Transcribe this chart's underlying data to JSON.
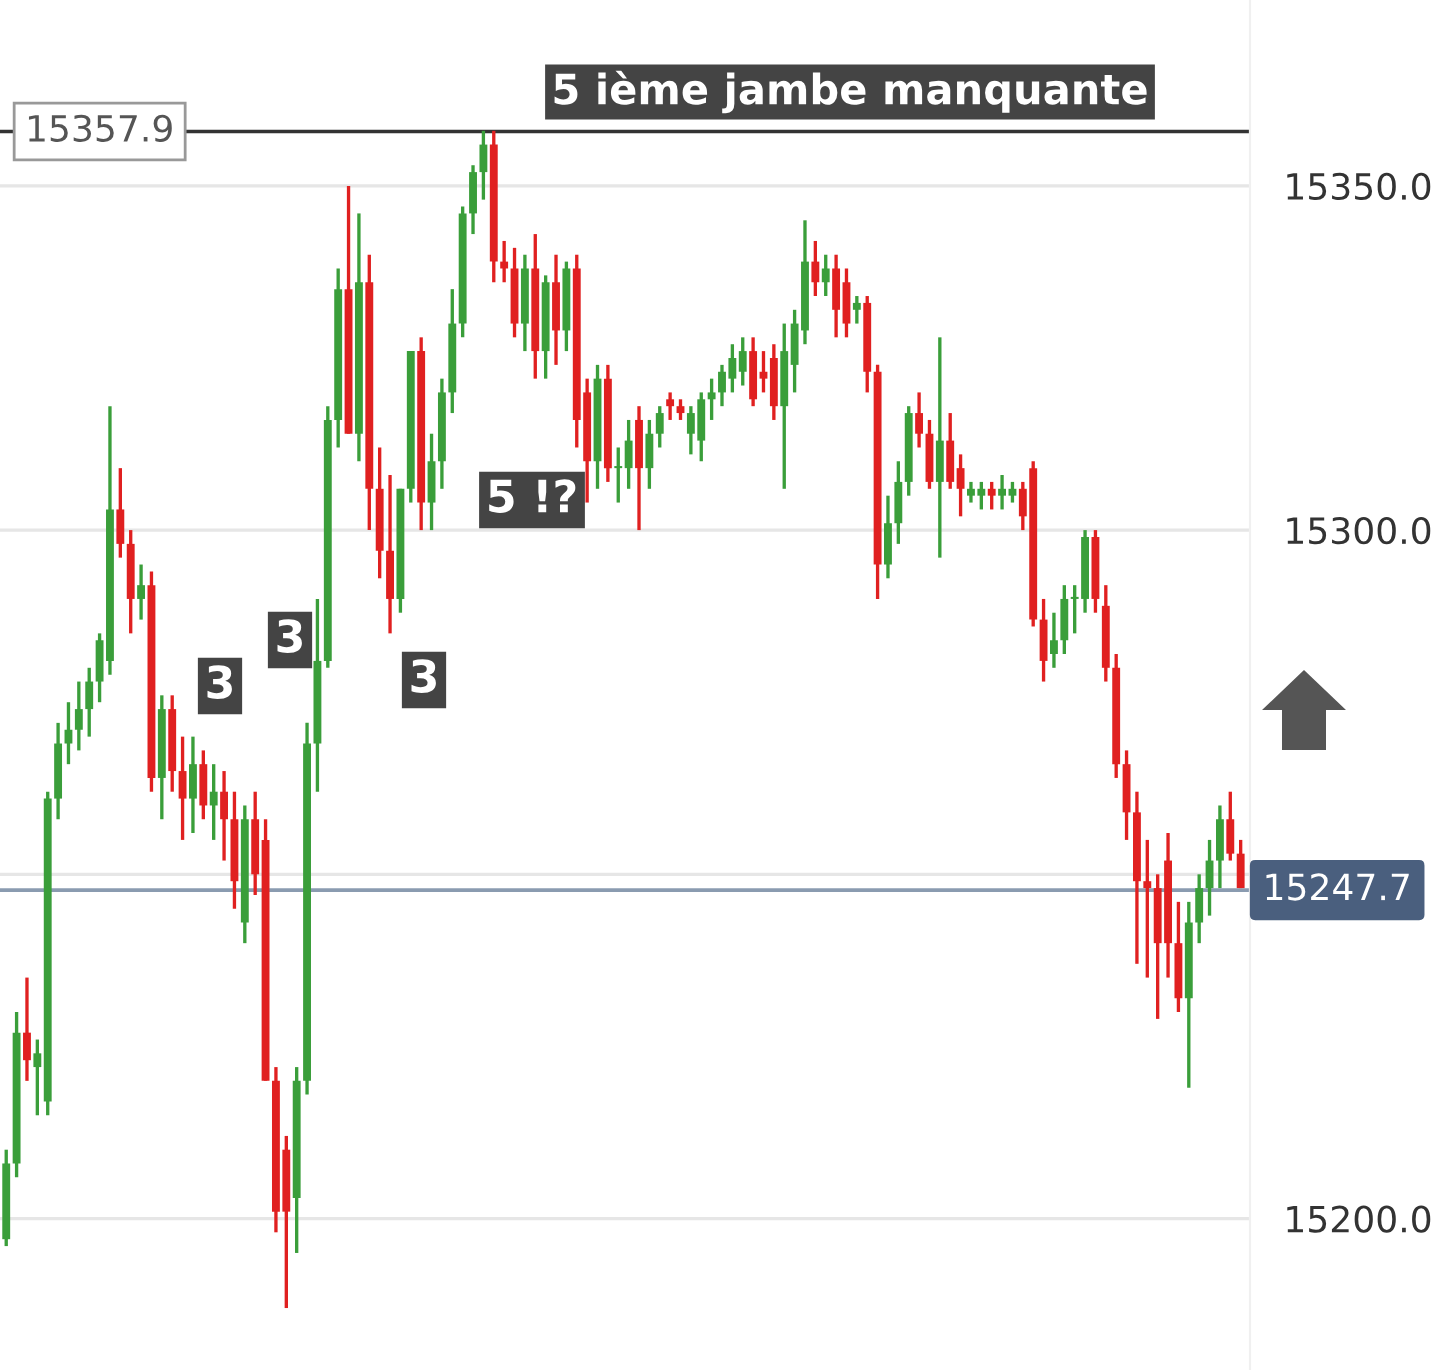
{
  "chart_data": {
    "type": "candlestick",
    "categories": [
      null,
      null,
      null,
      null,
      null,
      null,
      null,
      null,
      null,
      null,
      null,
      null,
      null,
      null,
      null,
      null,
      null,
      null,
      null,
      null,
      null,
      null,
      null,
      null,
      null,
      null,
      null,
      null,
      null,
      null,
      null,
      null,
      null,
      null,
      null,
      null,
      null,
      null,
      null,
      null,
      null,
      null,
      null,
      null,
      null,
      null,
      null,
      null,
      null,
      null,
      null,
      null,
      null,
      null,
      null,
      null,
      null,
      null,
      null,
      null,
      null,
      null,
      null,
      null,
      null,
      null,
      null,
      null,
      null,
      null,
      null,
      null,
      null,
      null,
      null,
      null,
      null,
      null,
      null,
      null,
      null,
      null,
      null,
      null,
      null,
      null,
      null,
      null,
      null,
      null,
      null,
      null,
      null,
      null,
      null,
      null,
      null,
      null,
      null,
      null,
      null,
      null,
      null,
      null,
      null,
      null,
      null,
      null,
      null,
      null,
      null,
      null,
      null,
      null,
      null,
      null,
      null,
      null,
      null,
      null
    ],
    "ohlc": [
      [
        15197,
        15210,
        15196,
        15208
      ],
      [
        15208,
        15230,
        15206,
        15227
      ],
      [
        15227,
        15235,
        15220,
        15223
      ],
      [
        15222,
        15226,
        15215,
        15224
      ],
      [
        15217,
        15262,
        15215,
        15261
      ],
      [
        15261,
        15272,
        15258,
        15269
      ],
      [
        15269,
        15275,
        15266,
        15271
      ],
      [
        15271,
        15278,
        15268,
        15274
      ],
      [
        15274,
        15280,
        15270,
        15278
      ],
      [
        15278,
        15285,
        15275,
        15284
      ],
      [
        15281,
        15318,
        15279,
        15303
      ],
      [
        15303,
        15309,
        15296,
        15298
      ],
      [
        15298,
        15300,
        15285,
        15290
      ],
      [
        15290,
        15295,
        15287,
        15292
      ],
      [
        15292,
        15294,
        15262,
        15264
      ],
      [
        15264,
        15276,
        15258,
        15274
      ],
      [
        15274,
        15276,
        15262,
        15265
      ],
      [
        15265,
        15270,
        15255,
        15261
      ],
      [
        15261,
        15270,
        15256,
        15266
      ],
      [
        15266,
        15268,
        15258,
        15260
      ],
      [
        15260,
        15266,
        15255,
        15262
      ],
      [
        15262,
        15265,
        15252,
        15258
      ],
      [
        15258,
        15262,
        15245,
        15249
      ],
      [
        15243,
        15260,
        15240,
        15258
      ],
      [
        15258,
        15262,
        15247,
        15250
      ],
      [
        15255,
        15258,
        15220,
        15220
      ],
      [
        15220,
        15222,
        15198,
        15201
      ],
      [
        15210,
        15212,
        15187,
        15201
      ],
      [
        15203,
        15222,
        15195,
        15220
      ],
      [
        15220,
        15272,
        15218,
        15269
      ],
      [
        15269,
        15290,
        15262,
        15281
      ],
      [
        15281,
        15318,
        15280,
        15316
      ],
      [
        15316,
        15338,
        15312,
        15335
      ],
      [
        15335,
        15350,
        15314,
        15314
      ],
      [
        15314,
        15346,
        15310,
        15336
      ],
      [
        15336,
        15340,
        15300,
        15306
      ],
      [
        15306,
        15312,
        15293,
        15297
      ],
      [
        15297,
        15308,
        15285,
        15290
      ],
      [
        15290,
        15306,
        15288,
        15306
      ],
      [
        15306,
        15326,
        15304,
        15326
      ],
      [
        15326,
        15328,
        15300,
        15304
      ],
      [
        15304,
        15314,
        15300,
        15310
      ],
      [
        15310,
        15322,
        15306,
        15320
      ],
      [
        15320,
        15335,
        15317,
        15330
      ],
      [
        15330,
        15347,
        15328,
        15346
      ],
      [
        15346,
        15353,
        15343,
        15352
      ],
      [
        15352,
        15358,
        15348,
        15356
      ],
      [
        15356,
        15358,
        15336,
        15339
      ],
      [
        15339,
        15342,
        15336,
        15338
      ],
      [
        15338,
        15341,
        15328,
        15330
      ],
      [
        15330,
        15340,
        15326,
        15338
      ],
      [
        15338,
        15343,
        15322,
        15326
      ],
      [
        15326,
        15337,
        15322,
        15336
      ],
      [
        15336,
        15340,
        15324,
        15329
      ],
      [
        15329,
        15339,
        15326,
        15338
      ],
      [
        15338,
        15340,
        15312,
        15316
      ],
      [
        15320,
        15322,
        15304,
        15310
      ],
      [
        15310,
        15324,
        15306,
        15322
      ],
      [
        15322,
        15324,
        15307,
        15309
      ],
      [
        15309,
        15312,
        15304,
        15309
      ],
      [
        15309,
        15316,
        15306,
        15313
      ],
      [
        15316,
        15318,
        15300,
        15309
      ],
      [
        15309,
        15316,
        15306,
        15314
      ],
      [
        15314,
        15318,
        15312,
        15317
      ],
      [
        15319,
        15320,
        15316,
        15318
      ],
      [
        15318,
        15319,
        15316,
        15317
      ],
      [
        15314,
        15318,
        15311,
        15317
      ],
      [
        15313,
        15320,
        15310,
        15319
      ],
      [
        15319,
        15322,
        15316,
        15320
      ],
      [
        15320,
        15324,
        15318,
        15323
      ],
      [
        15322,
        15327,
        15320,
        15325
      ],
      [
        15323,
        15328,
        15321,
        15326
      ],
      [
        15326,
        15328,
        15318,
        15319
      ],
      [
        15323,
        15326,
        15320,
        15322
      ],
      [
        15325,
        15327,
        15316,
        15318
      ],
      [
        15318,
        15330,
        15306,
        15326
      ],
      [
        15324,
        15332,
        15320,
        15330
      ],
      [
        15329,
        15345,
        15327,
        15339
      ],
      [
        15339,
        15342,
        15334,
        15336
      ],
      [
        15336,
        15340,
        15334,
        15338
      ],
      [
        15338,
        15340,
        15328,
        15332
      ],
      [
        15336,
        15338,
        15328,
        15330
      ],
      [
        15332,
        15334,
        15330,
        15333
      ],
      [
        15333,
        15334,
        15320,
        15323
      ],
      [
        15323,
        15324,
        15290,
        15295
      ],
      [
        15295,
        15305,
        15293,
        15301
      ],
      [
        15301,
        15310,
        15298,
        15307
      ],
      [
        15307,
        15318,
        15305,
        15317
      ],
      [
        15317,
        15320,
        15312,
        15314
      ],
      [
        15314,
        15316,
        15306,
        15307
      ],
      [
        15307,
        15328,
        15296,
        15313
      ],
      [
        15313,
        15317,
        15306,
        15307
      ],
      [
        15309,
        15311,
        15302,
        15306
      ],
      [
        15305,
        15307,
        15304,
        15306
      ],
      [
        15305,
        15307,
        15303,
        15306
      ],
      [
        15306,
        15307,
        15303,
        15305
      ],
      [
        15305,
        15308,
        15303,
        15306
      ],
      [
        15305,
        15307,
        15304,
        15306
      ],
      [
        15306,
        15307,
        15300,
        15302
      ],
      [
        15309,
        15310,
        15286,
        15287
      ],
      [
        15287,
        15290,
        15278,
        15281
      ],
      [
        15282,
        15288,
        15280,
        15284
      ],
      [
        15284,
        15292,
        15282,
        15290
      ],
      [
        15290,
        15292,
        15285,
        15290
      ],
      [
        15290,
        15300,
        15288,
        15299
      ],
      [
        15299,
        15300,
        15288,
        15290
      ],
      [
        15289,
        15292,
        15278,
        15280
      ],
      [
        15280,
        15282,
        15264,
        15266
      ],
      [
        15266,
        15268,
        15255,
        15259
      ],
      [
        15259,
        15262,
        15237,
        15249
      ],
      [
        15249,
        15255,
        15235,
        15248
      ],
      [
        15248,
        15250,
        15229,
        15240
      ],
      [
        15252,
        15256,
        15235,
        15240
      ],
      [
        15240,
        15246,
        15230,
        15232
      ],
      [
        15232,
        15246,
        15219,
        15243
      ],
      [
        15243,
        15250,
        15240,
        15248
      ],
      [
        15248,
        15255,
        15244,
        15252
      ],
      [
        15252,
        15260,
        15248,
        15258
      ],
      [
        15258,
        15262,
        15252,
        15253
      ],
      [
        15253,
        15255,
        15248,
        15248
      ]
    ],
    "ylim": [
      15178,
      15377
    ],
    "yticks": [
      {
        "value": 15200,
        "label": "15200.0"
      },
      {
        "value": 15250,
        "label": null
      },
      {
        "value": 15300,
        "label": "15300.0"
      },
      {
        "value": 15350,
        "label": "15350.0"
      }
    ],
    "grid": "y",
    "ref_lines": [
      {
        "axis": "y",
        "value": 15357.9,
        "label": "15357.9",
        "color": "#333333"
      },
      {
        "axis": "y",
        "value": 15247.7,
        "label": "15247.7",
        "color": "#8a9bb0"
      }
    ],
    "annotations": [
      "5 ième jambe manquante",
      "3",
      "3",
      "3",
      "5 !?"
    ]
  }
}
